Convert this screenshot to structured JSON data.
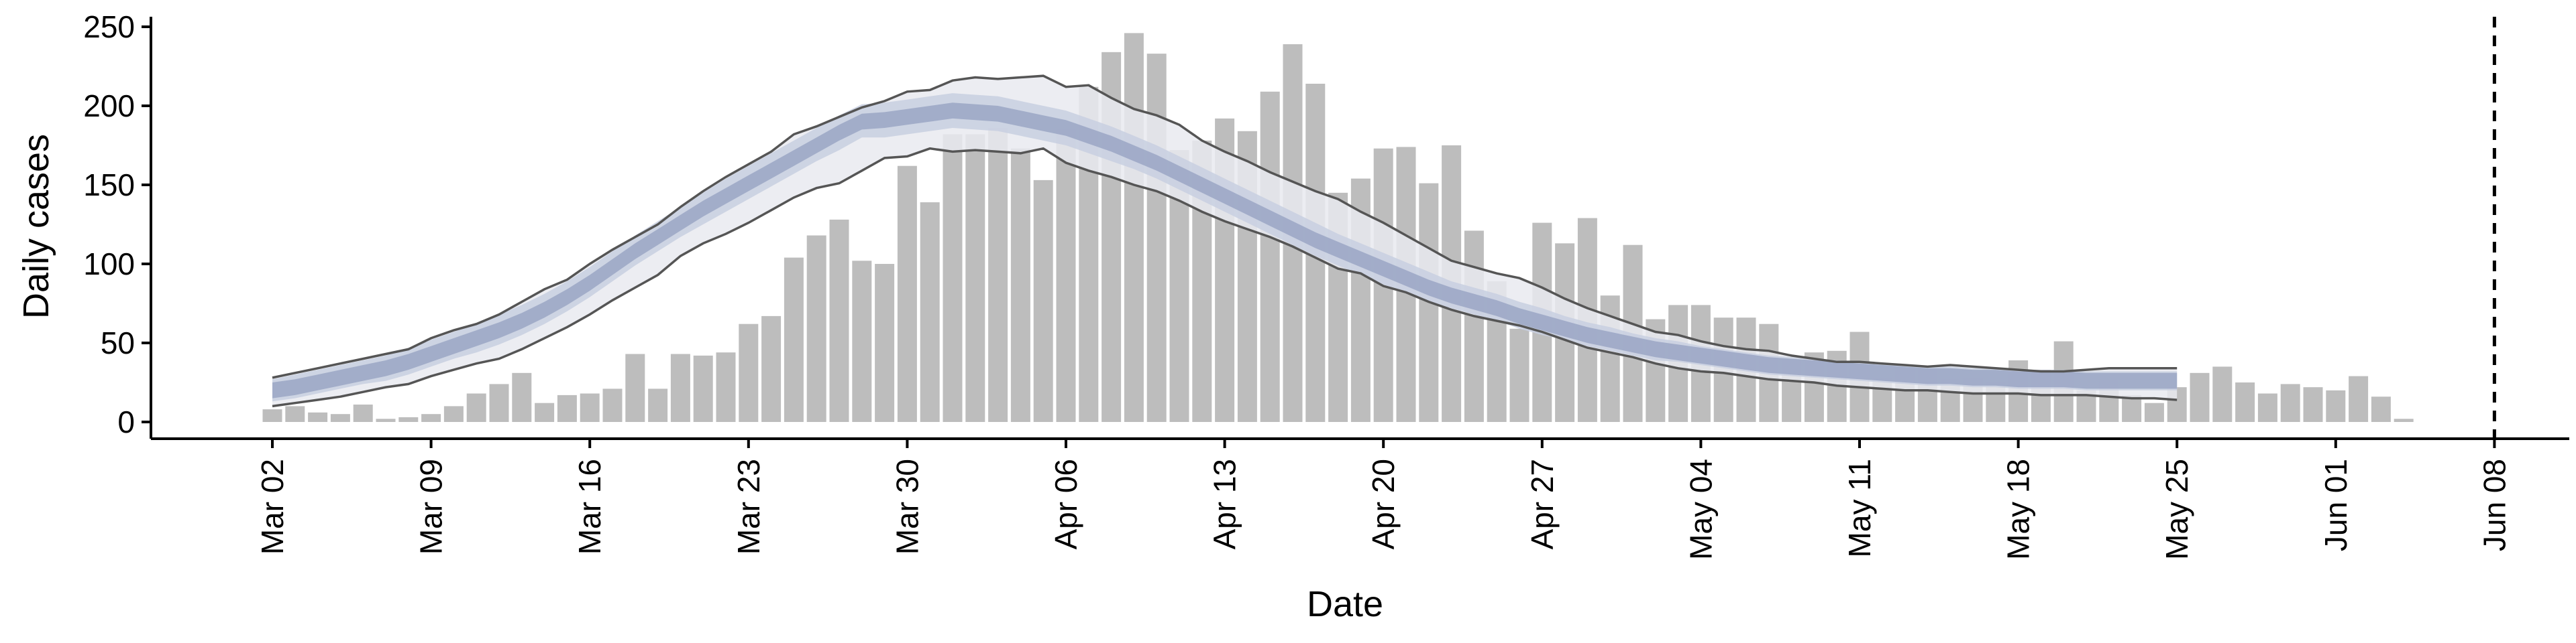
{
  "chart_data": {
    "type": "bar",
    "title": "",
    "xlabel": "Date",
    "ylabel": "Daily cases",
    "ylim": [
      0,
      260
    ],
    "y_ticks": [
      0,
      50,
      100,
      150,
      200,
      250
    ],
    "x_ticks": [
      "Mar 02",
      "Mar 09",
      "Mar 16",
      "Mar 23",
      "Mar 30",
      "Apr 06",
      "Apr 13",
      "Apr 20",
      "Apr 27",
      "May 04",
      "May 11",
      "May 18",
      "May 25",
      "Jun 01",
      "Jun 08"
    ],
    "x_start_date": "2020-03-02",
    "vline_date": "2020-06-08",
    "grid": false,
    "colors": {
      "bars": "#bdbdbd",
      "outer_band": "#e9eaf0",
      "inner_band": "#c8cfe0",
      "median_band": "#9aa6c4",
      "ci_lines": "#555555",
      "vline": "#000000"
    },
    "series": [
      {
        "type": "bar",
        "dates_from": "2020-03-02",
        "values": [
          8,
          10,
          6,
          5,
          11,
          2,
          3,
          5,
          10,
          18,
          24,
          31,
          12,
          17,
          18,
          21,
          43,
          21,
          43,
          42,
          44,
          62,
          67,
          104,
          118,
          128,
          102,
          100,
          162,
          139,
          182,
          182,
          186,
          173,
          153,
          185,
          212,
          234,
          246,
          233,
          172,
          178,
          192,
          184,
          209,
          239,
          214,
          145,
          154,
          173,
          174,
          151,
          175,
          121,
          89,
          59,
          126,
          113,
          129,
          80,
          112,
          65,
          74,
          74,
          66,
          66,
          62,
          39,
          44,
          45,
          57,
          28,
          34,
          33,
          27,
          28,
          25,
          39,
          33,
          51,
          20,
          26,
          17,
          12,
          22,
          31,
          35,
          25,
          18,
          24,
          22,
          20,
          29,
          16,
          2
        ]
      },
      {
        "type": "band",
        "dates_from": "2020-03-02",
        "median": [
          20,
          22,
          25,
          28,
          31,
          34,
          38,
          43,
          48,
          53,
          58,
          64,
          71,
          79,
          88,
          98,
          108,
          117,
          126,
          135,
          143,
          151,
          159,
          167,
          175,
          183,
          190,
          191,
          193,
          195,
          197,
          196,
          195,
          192,
          189,
          186,
          181,
          176,
          170,
          164,
          157,
          150,
          143,
          136,
          129,
          122,
          115,
          109,
          103,
          97,
          91,
          85,
          80,
          76,
          72,
          67,
          63,
          59,
          55,
          52,
          49,
          46,
          44,
          42,
          40,
          38,
          36,
          35,
          34,
          33,
          32,
          31,
          30,
          29,
          29,
          28,
          28,
          27,
          27,
          27,
          26,
          26,
          26,
          26,
          26
        ],
        "inner_low": [
          13,
          15,
          18,
          21,
          24,
          26,
          30,
          35,
          40,
          44,
          49,
          55,
          62,
          70,
          79,
          89,
          99,
          108,
          117,
          125,
          133,
          141,
          149,
          157,
          165,
          172,
          180,
          180,
          182,
          184,
          186,
          185,
          184,
          181,
          178,
          175,
          170,
          165,
          160,
          154,
          147,
          140,
          133,
          126,
          119,
          112,
          105,
          99,
          93,
          87,
          82,
          76,
          72,
          68,
          64,
          59,
          55,
          52,
          48,
          45,
          42,
          39,
          38,
          36,
          34,
          32,
          30,
          29,
          28,
          27,
          26,
          25,
          24,
          23,
          23,
          22,
          22,
          21,
          21,
          21,
          20,
          20,
          20,
          20,
          20
        ],
        "inner_high": [
          27,
          30,
          33,
          36,
          39,
          42,
          47,
          52,
          57,
          62,
          68,
          74,
          81,
          89,
          98,
          108,
          118,
          127,
          136,
          145,
          154,
          162,
          170,
          178,
          186,
          194,
          201,
          202,
          204,
          206,
          208,
          207,
          206,
          203,
          200,
          197,
          192,
          187,
          181,
          175,
          168,
          161,
          154,
          147,
          140,
          133,
          126,
          119,
          113,
          107,
          101,
          95,
          89,
          85,
          81,
          76,
          72,
          67,
          63,
          60,
          56,
          53,
          51,
          48,
          46,
          44,
          42,
          41,
          40,
          39,
          38,
          37,
          36,
          35,
          35,
          34,
          34,
          33,
          33,
          33,
          32,
          32,
          32,
          32,
          32
        ],
        "low": [
          10,
          12,
          14,
          16,
          19,
          22,
          24,
          29,
          33,
          37,
          40,
          46,
          53,
          60,
          68,
          77,
          85,
          93,
          105,
          113,
          119,
          126,
          134,
          142,
          148,
          151,
          159,
          167,
          168,
          173,
          171,
          172,
          171,
          170,
          173,
          164,
          159,
          155,
          150,
          146,
          140,
          133,
          127,
          122,
          117,
          111,
          104,
          97,
          94,
          86,
          82,
          76,
          71,
          67,
          64,
          61,
          57,
          52,
          47,
          44,
          41,
          37,
          34,
          32,
          31,
          29,
          27,
          26,
          25,
          23,
          22,
          21,
          20,
          20,
          19,
          18,
          18,
          18,
          17,
          17,
          17,
          16,
          15,
          15,
          14
        ],
        "high": [
          28,
          31,
          34,
          37,
          40,
          43,
          46,
          53,
          58,
          62,
          68,
          76,
          84,
          90,
          100,
          109,
          117,
          125,
          136,
          146,
          155,
          163,
          171,
          182,
          187,
          193,
          199,
          203,
          209,
          210,
          216,
          218,
          217,
          218,
          219,
          212,
          213,
          205,
          198,
          194,
          188,
          178,
          171,
          165,
          158,
          152,
          146,
          141,
          133,
          126,
          118,
          110,
          102,
          98,
          94,
          91,
          85,
          78,
          72,
          67,
          62,
          57,
          55,
          51,
          48,
          46,
          45,
          42,
          40,
          38,
          38,
          37,
          36,
          35,
          36,
          35,
          34,
          33,
          32,
          32,
          33,
          34,
          34,
          34,
          34
        ]
      }
    ]
  }
}
